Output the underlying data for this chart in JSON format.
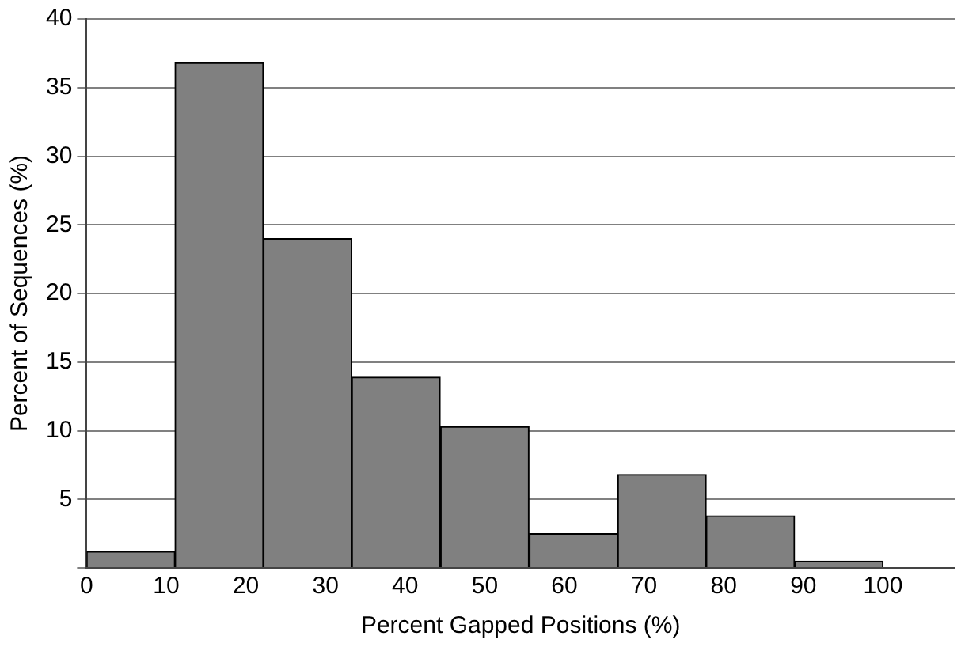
{
  "chart_data": {
    "type": "histogram",
    "xlabel": "Percent Gapped Positions (%)",
    "ylabel": "Percent of Sequences (%)",
    "bins": [
      0,
      11.1,
      22.2,
      33.3,
      44.4,
      55.6,
      66.7,
      77.8,
      88.9,
      100
    ],
    "values": [
      1.2,
      36.8,
      24,
      13.9,
      10.3,
      2.5,
      6.8,
      3.8,
      0.5
    ],
    "color": "#808080",
    "xlim": [
      0,
      109
    ],
    "xticks": [
      0,
      10,
      20,
      30,
      40,
      50,
      60,
      70,
      80,
      90,
      100
    ],
    "ylim": [
      0,
      40
    ],
    "yticks": [
      {
        "value": 0,
        "label": null
      },
      5,
      10,
      15,
      20,
      25,
      30,
      35,
      40
    ],
    "grid": "y",
    "legend": false
  }
}
